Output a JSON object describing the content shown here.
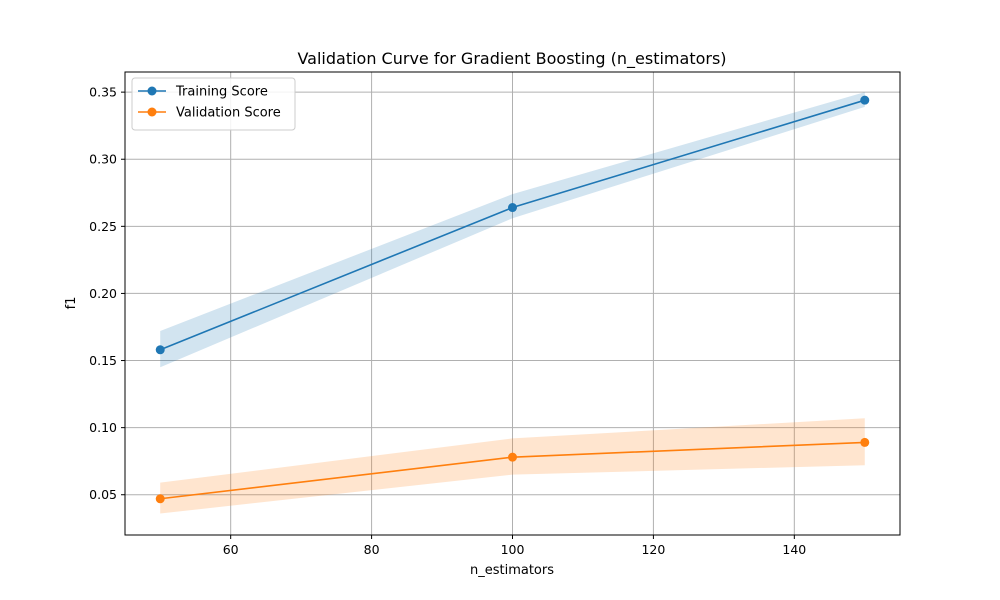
{
  "chart_data": {
    "type": "line",
    "title": "Validation Curve for Gradient Boosting (n_estimators)",
    "xlabel": "n_estimators",
    "ylabel": "f1",
    "x": [
      50,
      100,
      150
    ],
    "xlim": [
      45,
      155
    ],
    "ylim": [
      0.02,
      0.365
    ],
    "xticks": [
      60,
      80,
      100,
      120,
      140
    ],
    "xtick_labels": [
      "60",
      "80",
      "100",
      "120",
      "140"
    ],
    "yticks": [
      0.05,
      0.1,
      0.15,
      0.2,
      0.25,
      0.3,
      0.35
    ],
    "ytick_labels": [
      "0.05",
      "0.10",
      "0.15",
      "0.20",
      "0.25",
      "0.30",
      "0.35"
    ],
    "grid": true,
    "legend_position": "top-left",
    "series": [
      {
        "name": "Training Score",
        "values": [
          0.158,
          0.264,
          0.344
        ],
        "lower": [
          0.145,
          0.256,
          0.339
        ],
        "upper": [
          0.172,
          0.274,
          0.35
        ],
        "color": "#1f77b4",
        "band_color": "#1f77b4"
      },
      {
        "name": "Validation Score",
        "values": [
          0.047,
          0.078,
          0.089
        ],
        "lower": [
          0.036,
          0.065,
          0.072
        ],
        "upper": [
          0.059,
          0.092,
          0.107
        ],
        "color": "#ff7f0e",
        "band_color": "#ff7f0e"
      }
    ]
  }
}
